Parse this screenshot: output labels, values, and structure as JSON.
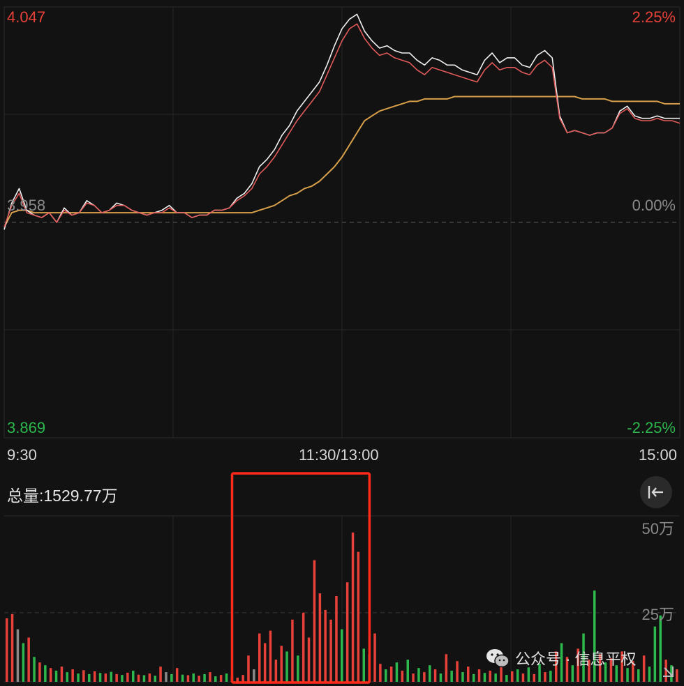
{
  "chart_data": [
    {
      "type": "line",
      "title": "",
      "y_axis_left": {
        "top": "4.047",
        "base": "3.958",
        "bottom": "3.869"
      },
      "y_axis_right": {
        "top": "2.25%",
        "base": "0.00%",
        "bottom": "-2.25%"
      },
      "ylim": [
        3.869,
        4.047
      ],
      "reference_price": 3.958,
      "x_ticks": [
        "9:30",
        "11:30/13:00",
        "15:00"
      ],
      "grid": true,
      "series": [
        {
          "color": "#f0f0f0",
          "values": [
            3.955,
            3.966,
            3.972,
            3.963,
            3.961,
            3.96,
            3.962,
            3.958,
            3.964,
            3.961,
            3.962,
            3.967,
            3.965,
            3.962,
            3.963,
            3.966,
            3.965,
            3.963,
            3.962,
            3.961,
            3.962,
            3.963,
            3.965,
            3.962,
            3.962,
            3.96,
            3.961,
            3.961,
            3.963,
            3.963,
            3.964,
            3.968,
            3.97,
            3.974,
            3.981,
            3.984,
            3.988,
            3.994,
            3.998,
            4.004,
            4.008,
            4.012,
            4.016,
            4.023,
            4.031,
            4.038,
            4.042,
            4.044,
            4.037,
            4.033,
            4.03,
            4.031,
            4.029,
            4.028,
            4.028,
            4.025,
            4.023,
            4.026,
            4.025,
            4.023,
            4.023,
            4.021,
            4.02,
            4.019,
            4.025,
            4.028,
            4.024,
            4.026,
            4.026,
            4.023,
            4.022,
            4.027,
            4.029,
            4.026,
            4.002,
            3.995,
            3.996,
            3.995,
            3.994,
            3.995,
            3.995,
            3.997,
            4.004,
            4.006,
            4.002,
            4.001,
            4.001,
            4.002,
            4.001,
            4.001,
            4.001
          ]
        },
        {
          "color": "#e05a5a",
          "values": [
            3.956,
            3.965,
            3.97,
            3.962,
            3.961,
            3.96,
            3.962,
            3.958,
            3.963,
            3.961,
            3.962,
            3.966,
            3.965,
            3.962,
            3.963,
            3.965,
            3.965,
            3.963,
            3.962,
            3.961,
            3.962,
            3.962,
            3.964,
            3.962,
            3.962,
            3.96,
            3.961,
            3.961,
            3.963,
            3.963,
            3.964,
            3.967,
            3.969,
            3.972,
            3.978,
            3.981,
            3.985,
            3.99,
            3.995,
            4.0,
            4.004,
            4.008,
            4.012,
            4.019,
            4.026,
            4.033,
            4.038,
            4.04,
            4.034,
            4.03,
            4.027,
            4.028,
            4.026,
            4.025,
            4.024,
            4.021,
            4.019,
            4.022,
            4.021,
            4.02,
            4.019,
            4.018,
            4.017,
            4.016,
            4.021,
            4.024,
            4.021,
            4.022,
            4.022,
            4.02,
            4.019,
            4.023,
            4.025,
            4.022,
            4.001,
            3.995,
            3.996,
            3.995,
            3.994,
            3.995,
            3.995,
            3.997,
            4.003,
            4.005,
            4.001,
            4.0,
            4.0,
            4.001,
            4.0,
            4.0,
            3.999
          ]
        },
        {
          "color": "#d8a04a",
          "values": [
            3.956,
            3.962,
            3.963,
            3.963,
            3.962,
            3.962,
            3.962,
            3.962,
            3.962,
            3.962,
            3.962,
            3.962,
            3.962,
            3.962,
            3.962,
            3.962,
            3.962,
            3.962,
            3.962,
            3.962,
            3.962,
            3.962,
            3.962,
            3.962,
            3.962,
            3.962,
            3.962,
            3.962,
            3.962,
            3.962,
            3.962,
            3.962,
            3.962,
            3.962,
            3.963,
            3.964,
            3.965,
            3.967,
            3.969,
            3.97,
            3.972,
            3.973,
            3.975,
            3.978,
            3.981,
            3.985,
            3.99,
            3.995,
            4.0,
            4.002,
            4.004,
            4.005,
            4.006,
            4.007,
            4.008,
            4.008,
            4.009,
            4.009,
            4.009,
            4.009,
            4.01,
            4.01,
            4.01,
            4.01,
            4.01,
            4.01,
            4.01,
            4.01,
            4.01,
            4.01,
            4.01,
            4.01,
            4.01,
            4.01,
            4.01,
            4.01,
            4.01,
            4.009,
            4.009,
            4.009,
            4.009,
            4.008,
            4.008,
            4.008,
            4.008,
            4.008,
            4.008,
            4.008,
            4.007,
            4.007,
            4.007
          ]
        }
      ]
    },
    {
      "type": "bar",
      "title": "总量:1529.77万",
      "y_tick_labels": [
        "50万",
        "25万"
      ],
      "y_ticks": [
        500000,
        250000
      ],
      "ylim": [
        0,
        600000
      ],
      "unit": "万",
      "highlight_box": {
        "color": "#ff2a1a",
        "from_bar": 42,
        "to_bar": 65
      },
      "bars": [
        {
          "v": 230000,
          "c": "#e8413a"
        },
        {
          "v": 245000,
          "c": "#e8413a"
        },
        {
          "v": 190000,
          "c": "#8a8a8a"
        },
        {
          "v": 140000,
          "c": "#2db84d"
        },
        {
          "v": 160000,
          "c": "#e8413a"
        },
        {
          "v": 90000,
          "c": "#2db84d"
        },
        {
          "v": 70000,
          "c": "#e8413a"
        },
        {
          "v": 60000,
          "c": "#2db84d"
        },
        {
          "v": 50000,
          "c": "#e8413a"
        },
        {
          "v": 40000,
          "c": "#2db84d"
        },
        {
          "v": 55000,
          "c": "#e8413a"
        },
        {
          "v": 35000,
          "c": "#2db84d"
        },
        {
          "v": 45000,
          "c": "#e8413a"
        },
        {
          "v": 30000,
          "c": "#2db84d"
        },
        {
          "v": 42000,
          "c": "#e8413a"
        },
        {
          "v": 28000,
          "c": "#2db84d"
        },
        {
          "v": 38000,
          "c": "#e8413a"
        },
        {
          "v": 32000,
          "c": "#2db84d"
        },
        {
          "v": 30000,
          "c": "#e8413a"
        },
        {
          "v": 36000,
          "c": "#2db84d"
        },
        {
          "v": 28000,
          "c": "#e8413a"
        },
        {
          "v": 25000,
          "c": "#2db84d"
        },
        {
          "v": 33000,
          "c": "#e8413a"
        },
        {
          "v": 40000,
          "c": "#2db84d"
        },
        {
          "v": 26000,
          "c": "#e8413a"
        },
        {
          "v": 24000,
          "c": "#2db84d"
        },
        {
          "v": 30000,
          "c": "#e8413a"
        },
        {
          "v": 22000,
          "c": "#2db84d"
        },
        {
          "v": 55000,
          "c": "#e8413a"
        },
        {
          "v": 35000,
          "c": "#8a8a8a"
        },
        {
          "v": 28000,
          "c": "#2db84d"
        },
        {
          "v": 50000,
          "c": "#e8413a"
        },
        {
          "v": 26000,
          "c": "#2db84d"
        },
        {
          "v": 24000,
          "c": "#e8413a"
        },
        {
          "v": 30000,
          "c": "#2db84d"
        },
        {
          "v": 22000,
          "c": "#e8413a"
        },
        {
          "v": 28000,
          "c": "#2db84d"
        },
        {
          "v": 35000,
          "c": "#e8413a"
        },
        {
          "v": 20000,
          "c": "#2db84d"
        },
        {
          "v": 25000,
          "c": "#e8413a"
        },
        {
          "v": 30000,
          "c": "#2db84d"
        },
        {
          "v": 20000,
          "c": "#e8413a"
        },
        {
          "v": 15000,
          "c": "#e8413a"
        },
        {
          "v": 25000,
          "c": "#e8413a"
        },
        {
          "v": 95000,
          "c": "#e8413a"
        },
        {
          "v": 45000,
          "c": "#8a8a8a"
        },
        {
          "v": 175000,
          "c": "#e8413a"
        },
        {
          "v": 140000,
          "c": "#e8413a"
        },
        {
          "v": 185000,
          "c": "#e8413a"
        },
        {
          "v": 80000,
          "c": "#e8413a"
        },
        {
          "v": 130000,
          "c": "#e8413a"
        },
        {
          "v": 110000,
          "c": "#2db84d"
        },
        {
          "v": 225000,
          "c": "#e8413a"
        },
        {
          "v": 95000,
          "c": "#2db84d"
        },
        {
          "v": 250000,
          "c": "#e8413a"
        },
        {
          "v": 160000,
          "c": "#e8413a"
        },
        {
          "v": 440000,
          "c": "#e8413a"
        },
        {
          "v": 320000,
          "c": "#e8413a"
        },
        {
          "v": 260000,
          "c": "#e8413a"
        },
        {
          "v": 225000,
          "c": "#e8413a"
        },
        {
          "v": 310000,
          "c": "#e8413a"
        },
        {
          "v": 190000,
          "c": "#2db84d"
        },
        {
          "v": 360000,
          "c": "#e8413a"
        },
        {
          "v": 540000,
          "c": "#e8413a"
        },
        {
          "v": 470000,
          "c": "#e8413a"
        },
        {
          "v": 120000,
          "c": "#2db84d"
        },
        {
          "v": 100000,
          "c": "#2db84d"
        },
        {
          "v": 175000,
          "c": "#e8413a"
        },
        {
          "v": 65000,
          "c": "#e8413a"
        },
        {
          "v": 45000,
          "c": "#2db84d"
        },
        {
          "v": 55000,
          "c": "#e8413a"
        },
        {
          "v": 70000,
          "c": "#2db84d"
        },
        {
          "v": 40000,
          "c": "#e8413a"
        },
        {
          "v": 80000,
          "c": "#2db84d"
        },
        {
          "v": 30000,
          "c": "#e8413a"
        },
        {
          "v": 50000,
          "c": "#2db84d"
        },
        {
          "v": 35000,
          "c": "#e8413a"
        },
        {
          "v": 60000,
          "c": "#2db84d"
        },
        {
          "v": 45000,
          "c": "#e8413a"
        },
        {
          "v": 30000,
          "c": "#2db84d"
        },
        {
          "v": 100000,
          "c": "#e8413a"
        },
        {
          "v": 40000,
          "c": "#2db84d"
        },
        {
          "v": 75000,
          "c": "#e8413a"
        },
        {
          "v": 35000,
          "c": "#2db84d"
        },
        {
          "v": 55000,
          "c": "#e8413a"
        },
        {
          "v": 28000,
          "c": "#2db84d"
        },
        {
          "v": 45000,
          "c": "#e8413a"
        },
        {
          "v": 32000,
          "c": "#2db84d"
        },
        {
          "v": 40000,
          "c": "#e8413a"
        },
        {
          "v": 30000,
          "c": "#2db84d"
        },
        {
          "v": 60000,
          "c": "#e8413a"
        },
        {
          "v": 25000,
          "c": "#2db84d"
        },
        {
          "v": 38000,
          "c": "#e8413a"
        },
        {
          "v": 45000,
          "c": "#2db84d"
        },
        {
          "v": 30000,
          "c": "#e8413a"
        },
        {
          "v": 52000,
          "c": "#2db84d"
        },
        {
          "v": 28000,
          "c": "#e8413a"
        },
        {
          "v": 65000,
          "c": "#2db84d"
        },
        {
          "v": 35000,
          "c": "#e8413a"
        },
        {
          "v": 40000,
          "c": "#2db84d"
        },
        {
          "v": 110000,
          "c": "#e8413a"
        },
        {
          "v": 140000,
          "c": "#2db84d"
        },
        {
          "v": 90000,
          "c": "#e8413a"
        },
        {
          "v": 60000,
          "c": "#2db84d"
        },
        {
          "v": 120000,
          "c": "#e8413a"
        },
        {
          "v": 175000,
          "c": "#2db84d"
        },
        {
          "v": 80000,
          "c": "#e8413a"
        },
        {
          "v": 330000,
          "c": "#2db84d"
        },
        {
          "v": 100000,
          "c": "#e8413a"
        },
        {
          "v": 70000,
          "c": "#2db84d"
        },
        {
          "v": 85000,
          "c": "#e8413a"
        },
        {
          "v": 60000,
          "c": "#2db84d"
        },
        {
          "v": 110000,
          "c": "#e8413a"
        },
        {
          "v": 50000,
          "c": "#2db84d"
        },
        {
          "v": 75000,
          "c": "#e8413a"
        },
        {
          "v": 45000,
          "c": "#2db84d"
        },
        {
          "v": 95000,
          "c": "#e8413a"
        },
        {
          "v": 55000,
          "c": "#2db84d"
        },
        {
          "v": 200000,
          "c": "#2db84d"
        },
        {
          "v": 240000,
          "c": "#2db84d"
        },
        {
          "v": 80000,
          "c": "#e8413a"
        },
        {
          "v": 60000,
          "c": "#2db84d"
        },
        {
          "v": 45000,
          "c": "#e8413a"
        }
      ]
    }
  ],
  "labels": {
    "price_top": "4.047",
    "price_base": "3.958",
    "price_bottom": "3.869",
    "pct_top": "2.25%",
    "pct_base": "0.00%",
    "pct_bottom": "-2.25%",
    "time_start": "9:30",
    "time_mid": "11:30/13:00",
    "time_end": "15:00",
    "volume_total": "总量:1529.77万",
    "vol_tick_top": "50万",
    "vol_tick_mid": "25万",
    "watermark": "公众号 · 信息平权"
  },
  "icons": {
    "collapse": "arrow-left-to-bar-icon",
    "wechat": "wechat-icon",
    "expand": "expand-corner-icon"
  }
}
